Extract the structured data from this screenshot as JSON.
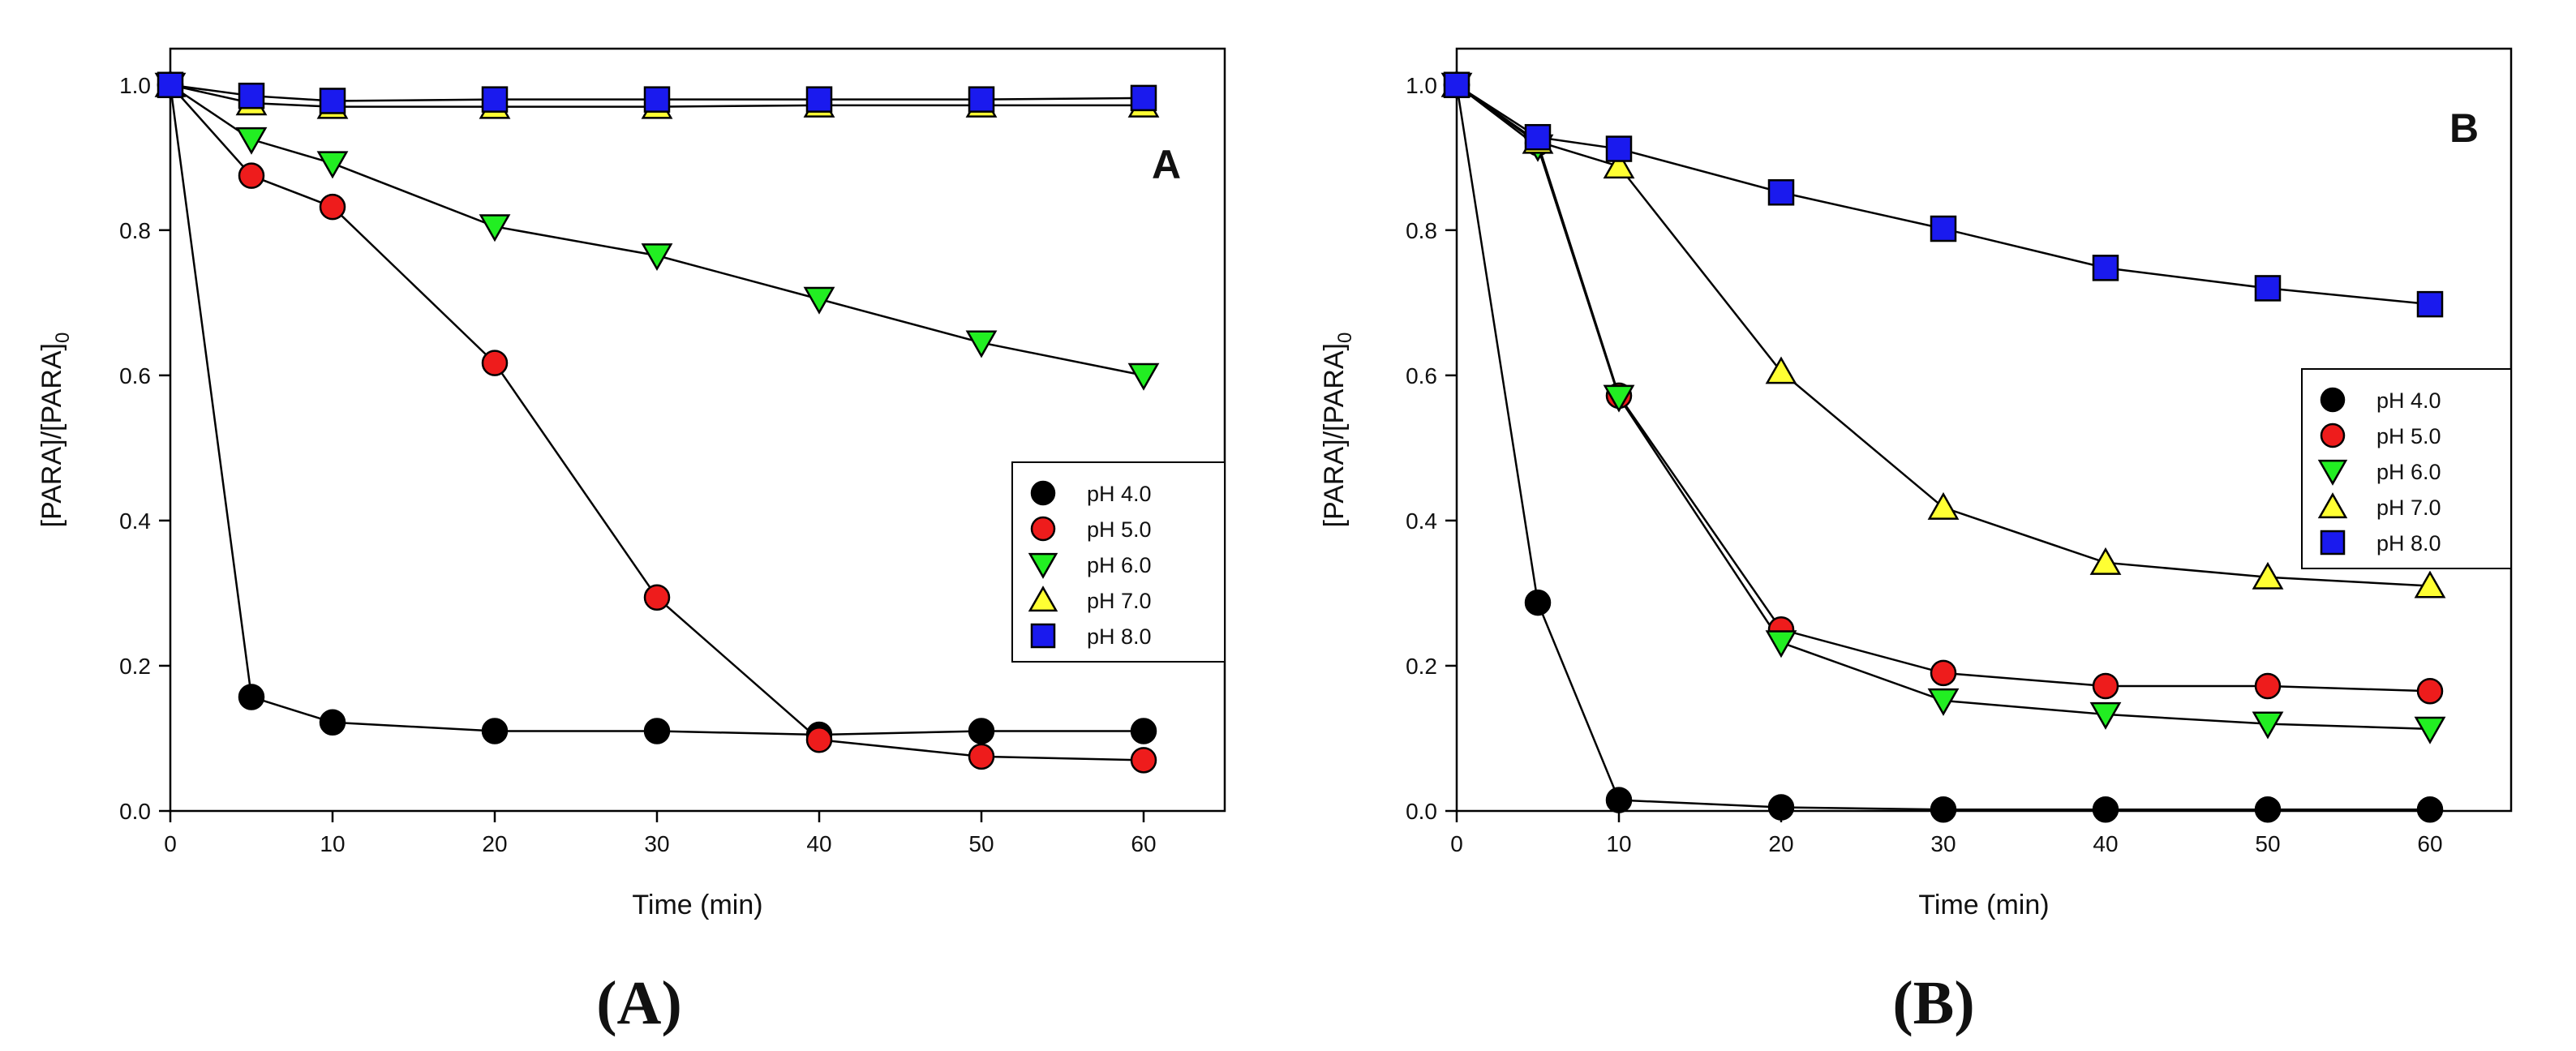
{
  "chart_data": [
    {
      "type": "line",
      "panel_label": "A",
      "caption_prefix": "(",
      "caption_letter": "A",
      "caption_suffix": ")",
      "xlabel": "Time (min)",
      "ylabel_main": "[PARA]/[PARA]",
      "ylabel_sub": "0",
      "xlim": [
        0,
        65
      ],
      "ylim": [
        0,
        1.05
      ],
      "xticks": [
        "0",
        "10",
        "20",
        "30",
        "40",
        "50",
        "60"
      ],
      "yticks": [
        "0.0",
        "0.2",
        "0.4",
        "0.6",
        "0.8",
        "1.0"
      ],
      "legend_position": "center-right",
      "series": [
        {
          "name": "pH 4.0",
          "marker": "circle",
          "color": "#000000",
          "x": [
            0,
            5,
            10,
            20,
            30,
            40,
            50,
            60
          ],
          "y": [
            1.0,
            0.157,
            0.122,
            0.11,
            0.11,
            0.105,
            0.11,
            0.11
          ]
        },
        {
          "name": "pH 5.0",
          "marker": "circle",
          "color": "#ee1c1c",
          "x": [
            0,
            5,
            10,
            20,
            30,
            40,
            50,
            60
          ],
          "y": [
            1.0,
            0.875,
            0.832,
            0.617,
            0.294,
            0.098,
            0.075,
            0.07
          ]
        },
        {
          "name": "pH 6.0",
          "marker": "triangle-down",
          "color": "#22ee22",
          "x": [
            0,
            5,
            10,
            20,
            30,
            40,
            50,
            60
          ],
          "y": [
            1.0,
            0.925,
            0.892,
            0.805,
            0.765,
            0.705,
            0.645,
            0.6
          ]
        },
        {
          "name": "pH 7.0",
          "marker": "triangle-up",
          "color": "#ffff33",
          "x": [
            0,
            5,
            10,
            20,
            30,
            40,
            50,
            60
          ],
          "y": [
            1.0,
            0.975,
            0.97,
            0.97,
            0.97,
            0.972,
            0.972,
            0.972
          ]
        },
        {
          "name": "pH 8.0",
          "marker": "square",
          "color": "#1a1aee",
          "x": [
            0,
            5,
            10,
            20,
            30,
            40,
            50,
            60
          ],
          "y": [
            1.0,
            0.985,
            0.978,
            0.98,
            0.98,
            0.98,
            0.98,
            0.982
          ]
        }
      ]
    },
    {
      "type": "line",
      "panel_label": "B",
      "caption_prefix": "(",
      "caption_letter": "B",
      "caption_suffix": ")",
      "xlabel": "Time (min)",
      "ylabel_main": "[PARA]/[PARA]",
      "ylabel_sub": "0",
      "xlim": [
        0,
        65
      ],
      "ylim": [
        0,
        1.05
      ],
      "xticks": [
        "0",
        "10",
        "20",
        "30",
        "40",
        "50",
        "60"
      ],
      "yticks": [
        "0.0",
        "0.2",
        "0.4",
        "0.6",
        "0.8",
        "1.0"
      ],
      "legend_position": "center-right",
      "series": [
        {
          "name": "pH 4.0",
          "marker": "circle",
          "color": "#000000",
          "x": [
            0,
            5,
            10,
            20,
            30,
            40,
            50,
            60
          ],
          "y": [
            1.0,
            0.287,
            0.015,
            0.005,
            0.002,
            0.002,
            0.002,
            0.002
          ]
        },
        {
          "name": "pH 5.0",
          "marker": "circle",
          "color": "#ee1c1c",
          "x": [
            0,
            5,
            10,
            20,
            30,
            40,
            50,
            60
          ],
          "y": [
            1.0,
            0.92,
            0.572,
            0.25,
            0.19,
            0.172,
            0.172,
            0.165
          ]
        },
        {
          "name": "pH 6.0",
          "marker": "triangle-down",
          "color": "#22ee22",
          "x": [
            0,
            5,
            10,
            20,
            30,
            40,
            50,
            60
          ],
          "y": [
            1.0,
            0.915,
            0.57,
            0.232,
            0.152,
            0.133,
            0.12,
            0.113
          ]
        },
        {
          "name": "pH 7.0",
          "marker": "triangle-up",
          "color": "#ffff33",
          "x": [
            0,
            5,
            10,
            20,
            30,
            40,
            50,
            60
          ],
          "y": [
            1.0,
            0.922,
            0.888,
            0.605,
            0.418,
            0.342,
            0.322,
            0.31
          ]
        },
        {
          "name": "pH 8.0",
          "marker": "square",
          "color": "#1a1aee",
          "x": [
            0,
            5,
            10,
            20,
            30,
            40,
            50,
            60
          ],
          "y": [
            1.0,
            0.928,
            0.912,
            0.852,
            0.802,
            0.748,
            0.72,
            0.698
          ]
        }
      ]
    }
  ]
}
